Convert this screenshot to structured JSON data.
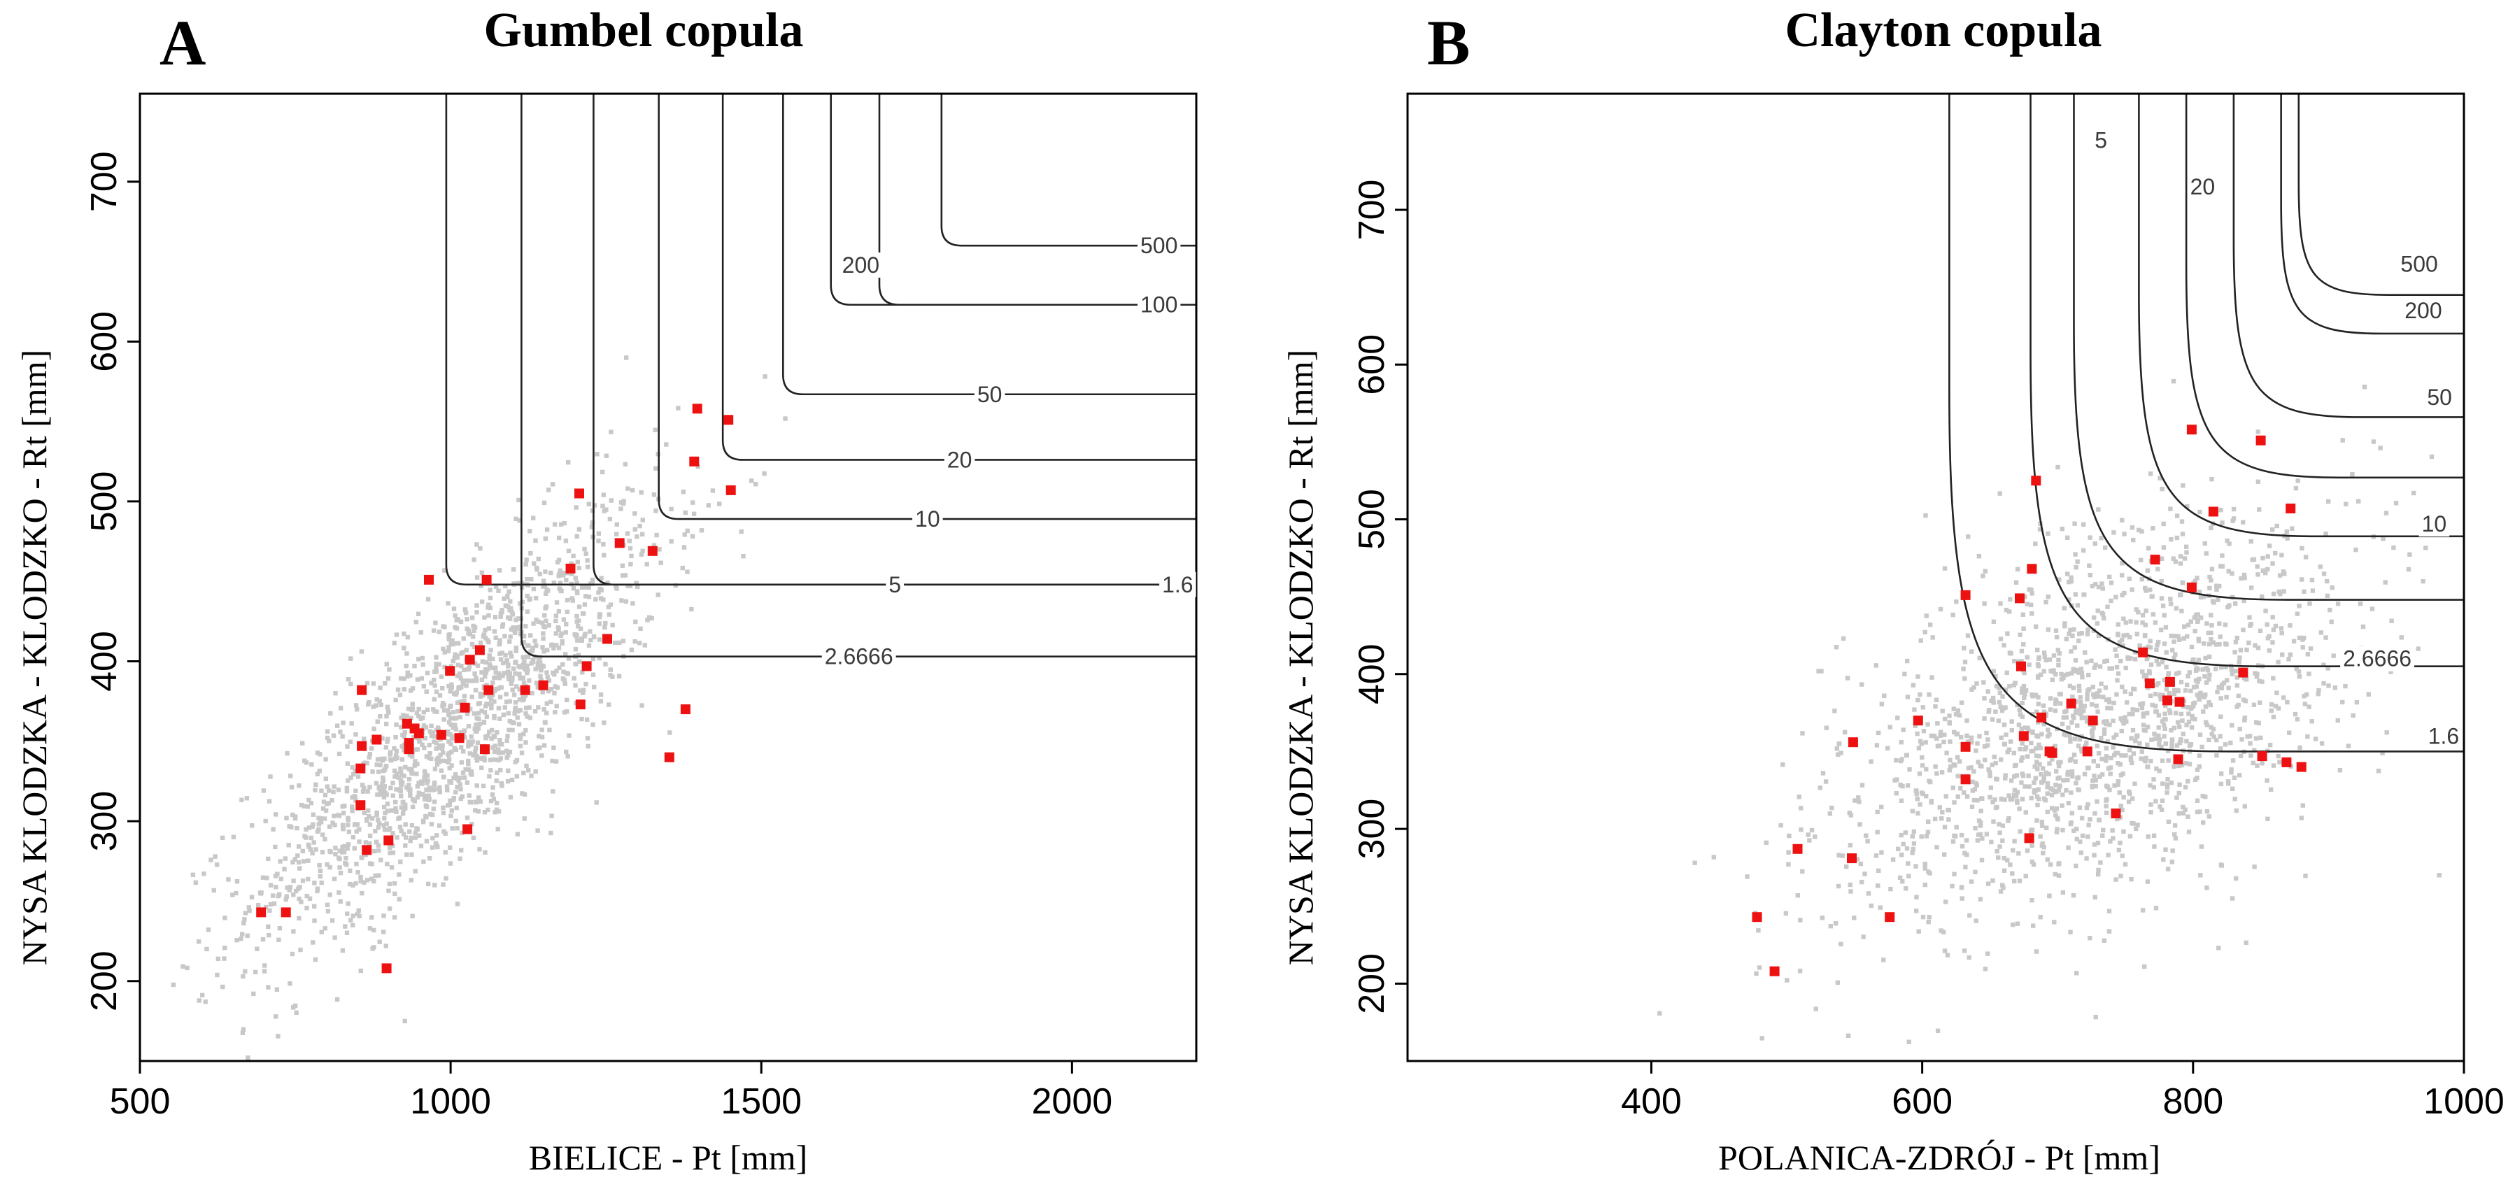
{
  "chart_data": [
    {
      "type": "scatter",
      "panel_letter": "A",
      "title": "Gumbel copula",
      "xlabel": "BIELICE - Pt [mm]",
      "ylabel": "NYSA KLODZKA - KLODZKO - Rt [mm]",
      "xlim": [
        500,
        2200
      ],
      "ylim": [
        150,
        755
      ],
      "xticks": [
        500,
        1000,
        1500,
        2000
      ],
      "yticks": [
        200,
        300,
        400,
        500,
        600,
        700
      ],
      "simulated_cloud": {
        "name": "simulated",
        "color": "#c8c8c8",
        "count": 1700,
        "mean_x": 1010,
        "mean_y": 360,
        "sd_x": 165,
        "sd_y": 68,
        "corr": 0.8
      },
      "observed": {
        "name": "observed",
        "color": "#ee1111",
        "points": [
          [
            1397,
            558
          ],
          [
            1447,
            551
          ],
          [
            1392,
            525
          ],
          [
            1451,
            507
          ],
          [
            1207,
            505
          ],
          [
            1272,
            474
          ],
          [
            1325,
            469
          ],
          [
            1193,
            458
          ],
          [
            965,
            451
          ],
          [
            1058,
            451
          ],
          [
            1252,
            414
          ],
          [
            1047,
            407
          ],
          [
            1031,
            401
          ],
          [
            1219,
            397
          ],
          [
            999,
            394
          ],
          [
            1149,
            385
          ],
          [
            1061,
            382
          ],
          [
            1120,
            382
          ],
          [
            1209,
            373
          ],
          [
            1378,
            370
          ],
          [
            1023,
            371
          ],
          [
            857,
            382
          ],
          [
            942,
            358
          ],
          [
            930,
            361
          ],
          [
            949,
            355
          ],
          [
            985,
            354
          ],
          [
            1014,
            352
          ],
          [
            881,
            351
          ],
          [
            857,
            347
          ],
          [
            1055,
            345
          ],
          [
            933,
            349
          ],
          [
            933,
            345
          ],
          [
            855,
            333
          ],
          [
            1352,
            340
          ],
          [
            855,
            310
          ],
          [
            1027,
            295
          ],
          [
            900,
            288
          ],
          [
            865,
            282
          ],
          [
            695,
            243
          ],
          [
            735,
            243
          ],
          [
            897,
            208
          ]
        ]
      },
      "contours": [
        {
          "label": "1.6",
          "x0": 993,
          "y0": 448
        },
        {
          "label": "2.6666",
          "x0": 1114,
          "y0": 403
        },
        {
          "label": "5",
          "x0": 1230,
          "y0": 448
        },
        {
          "label": "10",
          "x0": 1335,
          "y0": 489
        },
        {
          "label": "20",
          "x0": 1438,
          "y0": 526
        },
        {
          "label": "50",
          "x0": 1535,
          "y0": 567
        },
        {
          "label": "100",
          "x0": 1612,
          "y0": 623
        },
        {
          "label": "200",
          "x0": 1690,
          "y0": 623
        },
        {
          "label": "500",
          "x0": 1790,
          "y0": 660
        }
      ]
    },
    {
      "type": "scatter",
      "panel_letter": "B",
      "title": "Clayton copula",
      "xlabel": "POLANICA-ZDRÓJ - Pt [mm]",
      "ylabel": "NYSA KLODZKA - KLODZKO - Rt [mm]",
      "xlim": [
        220,
        1000
      ],
      "ylim": [
        150,
        775
      ],
      "xticks": [
        400,
        600,
        800,
        1000
      ],
      "yticks": [
        200,
        300,
        400,
        500,
        600,
        700
      ],
      "simulated_cloud": {
        "name": "simulated",
        "color": "#c8c8c8",
        "count": 1700,
        "mean_x": 725,
        "mean_y": 370,
        "sd_x": 95,
        "sd_y": 65,
        "corr": 0.5
      },
      "observed": {
        "name": "observed",
        "color": "#ee1111",
        "points": [
          [
            799,
            558
          ],
          [
            850,
            551
          ],
          [
            684,
            525
          ],
          [
            815,
            505
          ],
          [
            872,
            507
          ],
          [
            681,
            468
          ],
          [
            772,
            474
          ],
          [
            632,
            451
          ],
          [
            672,
            449
          ],
          [
            799,
            456
          ],
          [
            763,
            414
          ],
          [
            673,
            405
          ],
          [
            837,
            401
          ],
          [
            768,
            394
          ],
          [
            783,
            395
          ],
          [
            710,
            381
          ],
          [
            781,
            383
          ],
          [
            790,
            382
          ],
          [
            688,
            372
          ],
          [
            597,
            370
          ],
          [
            726,
            370
          ],
          [
            675,
            360
          ],
          [
            549,
            356
          ],
          [
            632,
            353
          ],
          [
            722,
            350
          ],
          [
            694,
            350
          ],
          [
            696,
            349
          ],
          [
            789,
            345
          ],
          [
            851,
            347
          ],
          [
            869,
            343
          ],
          [
            880,
            340
          ],
          [
            632,
            332
          ],
          [
            743,
            310
          ],
          [
            679,
            294
          ],
          [
            508,
            287
          ],
          [
            548,
            281
          ],
          [
            576,
            243
          ],
          [
            478,
            243
          ],
          [
            491,
            208
          ]
        ]
      },
      "contours": [
        {
          "label": "1.6",
          "x0": 620,
          "y0": 350,
          "k": 0.95
        },
        {
          "label": "2.6666",
          "x0": 680,
          "y0": 405,
          "k": 0.92
        },
        {
          "label": "5",
          "x0": 712,
          "y0": 448,
          "k": 0.9
        },
        {
          "label": "10",
          "x0": 760,
          "y0": 489,
          "k": 0.88
        },
        {
          "label": "20",
          "x0": 795,
          "y0": 527,
          "k": 0.86
        },
        {
          "label": "50",
          "x0": 830,
          "y0": 566,
          "k": 0.84
        },
        {
          "label": "200",
          "x0": 865,
          "y0": 620,
          "k": 0.83
        },
        {
          "label": "500",
          "x0": 878,
          "y0": 645,
          "k": 0.82
        }
      ]
    }
  ]
}
